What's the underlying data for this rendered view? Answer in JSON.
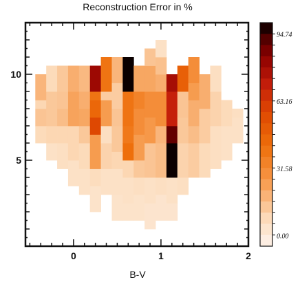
{
  "chart_data": {
    "type": "heatmap",
    "title": "Reconstruction Error in %",
    "xlabel": "B-V",
    "ylabel": "",
    "xlim": [
      -0.55,
      2.0
    ],
    "ylim": [
      0,
      13
    ],
    "xticks": [
      0,
      1,
      2
    ],
    "xtick_labels": [
      "0",
      "1",
      "2"
    ],
    "yticks": [
      5,
      10
    ],
    "ytick_labels": [
      "5",
      "10"
    ],
    "colorbar": {
      "range": [
        -5,
        100
      ],
      "tick_values": [
        0.0,
        31.58,
        63.16,
        94.74
      ],
      "tick_labels": [
        "0.00",
        "31.58",
        "63.16",
        "94.74"
      ],
      "low_color": "#fdf3ec",
      "high_color": "#000000"
    },
    "cell_width": 0.125,
    "cell_height": 0.5,
    "columns": [
      {
        "x": -0.375,
        "segments": [
          {
            "y0": 6.0,
            "y1": 7.0,
            "value": 8
          },
          {
            "y0": 7.0,
            "y1": 8.0,
            "value": 14
          },
          {
            "y0": 8.0,
            "y1": 8.5,
            "value": 9
          },
          {
            "y0": 8.5,
            "y1": 10.0,
            "value": 18
          }
        ]
      },
      {
        "x": -0.25,
        "segments": [
          {
            "y0": 5.0,
            "y1": 6.0,
            "value": 5
          },
          {
            "y0": 6.0,
            "y1": 7.0,
            "value": 9
          },
          {
            "y0": 7.0,
            "y1": 9.0,
            "value": 13
          },
          {
            "y0": 9.0,
            "y1": 10.5,
            "value": 8
          }
        ]
      },
      {
        "x": -0.125,
        "segments": [
          {
            "y0": 4.5,
            "y1": 6.0,
            "value": 6
          },
          {
            "y0": 6.0,
            "y1": 7.0,
            "value": 9
          },
          {
            "y0": 7.0,
            "y1": 8.0,
            "value": 16
          },
          {
            "y0": 8.0,
            "y1": 9.0,
            "value": 14
          },
          {
            "y0": 9.0,
            "y1": 10.5,
            "value": 13
          }
        ]
      },
      {
        "x": 0.0,
        "segments": [
          {
            "y0": 3.5,
            "y1": 5.0,
            "value": 5
          },
          {
            "y0": 5.0,
            "y1": 7.0,
            "value": 9
          },
          {
            "y0": 7.0,
            "y1": 9.0,
            "value": 23
          },
          {
            "y0": 9.0,
            "y1": 10.5,
            "value": 20
          }
        ]
      },
      {
        "x": 0.125,
        "segments": [
          {
            "y0": 3.0,
            "y1": 4.5,
            "value": 5
          },
          {
            "y0": 4.5,
            "y1": 6.0,
            "value": 8
          },
          {
            "y0": 6.0,
            "y1": 7.0,
            "value": 13
          },
          {
            "y0": 7.0,
            "y1": 8.0,
            "value": 22
          },
          {
            "y0": 8.0,
            "y1": 9.0,
            "value": 20
          },
          {
            "y0": 9.0,
            "y1": 10.5,
            "value": 17
          }
        ]
      },
      {
        "x": 0.25,
        "segments": [
          {
            "y0": 3.5,
            "y1": 4.5,
            "value": 7
          },
          {
            "y0": 4.5,
            "y1": 6.5,
            "value": 25
          },
          {
            "y0": 6.5,
            "y1": 7.5,
            "value": 58
          },
          {
            "y0": 7.5,
            "y1": 8.5,
            "value": 45
          },
          {
            "y0": 8.5,
            "y1": 9.0,
            "value": 40
          },
          {
            "y0": 9.0,
            "y1": 10.5,
            "value": 80
          }
        ]
      },
      {
        "x": 0.375,
        "segments": [
          {
            "y0": 3.0,
            "y1": 4.5,
            "value": 5
          },
          {
            "y0": 4.5,
            "y1": 6.0,
            "value": 10
          },
          {
            "y0": 6.0,
            "y1": 7.0,
            "value": 6
          },
          {
            "y0": 7.0,
            "y1": 8.5,
            "value": 25
          },
          {
            "y0": 8.5,
            "y1": 9.0,
            "value": 12
          },
          {
            "y0": 9.0,
            "y1": 11.0,
            "value": 40
          }
        ]
      },
      {
        "x": 0.5,
        "segments": [
          {
            "y0": 3.0,
            "y1": 4.5,
            "value": 5
          },
          {
            "y0": 4.5,
            "y1": 5.5,
            "value": 9
          },
          {
            "y0": 5.5,
            "y1": 7.0,
            "value": 13
          },
          {
            "y0": 7.0,
            "y1": 8.0,
            "value": 14
          },
          {
            "y0": 8.0,
            "y1": 9.5,
            "value": 12
          },
          {
            "y0": 9.5,
            "y1": 11.0,
            "value": 18
          }
        ]
      },
      {
        "x": 0.625,
        "segments": [
          {
            "y0": 2.5,
            "y1": 4.0,
            "value": 5
          },
          {
            "y0": 4.0,
            "y1": 5.0,
            "value": 9
          },
          {
            "y0": 5.0,
            "y1": 6.0,
            "value": 42
          },
          {
            "y0": 6.0,
            "y1": 7.0,
            "value": 38
          },
          {
            "y0": 7.0,
            "y1": 9.0,
            "value": 40
          },
          {
            "y0": 9.0,
            "y1": 11.0,
            "value": 99
          }
        ]
      },
      {
        "x": 0.75,
        "segments": [
          {
            "y0": 3.0,
            "y1": 4.0,
            "value": 6
          },
          {
            "y0": 4.0,
            "y1": 5.0,
            "value": 13
          },
          {
            "y0": 5.0,
            "y1": 6.5,
            "value": 25
          },
          {
            "y0": 6.5,
            "y1": 8.0,
            "value": 30
          },
          {
            "y0": 8.0,
            "y1": 9.0,
            "value": 34
          },
          {
            "y0": 9.0,
            "y1": 10.5,
            "value": 22
          }
        ]
      },
      {
        "x": 0.875,
        "segments": [
          {
            "y0": 2.5,
            "y1": 4.0,
            "value": 5
          },
          {
            "y0": 4.0,
            "y1": 6.0,
            "value": 14
          },
          {
            "y0": 6.0,
            "y1": 7.5,
            "value": 26
          },
          {
            "y0": 7.5,
            "y1": 9.0,
            "value": 30
          },
          {
            "y0": 9.0,
            "y1": 10.5,
            "value": 22
          },
          {
            "y0": 10.5,
            "y1": 11.5,
            "value": 14
          }
        ]
      },
      {
        "x": 1.0,
        "segments": [
          {
            "y0": 3.0,
            "y1": 4.0,
            "value": 6
          },
          {
            "y0": 4.0,
            "y1": 6.0,
            "value": 16
          },
          {
            "y0": 6.0,
            "y1": 7.0,
            "value": 18
          },
          {
            "y0": 7.0,
            "y1": 9.0,
            "value": 30
          },
          {
            "y0": 9.0,
            "y1": 10.0,
            "value": 20
          },
          {
            "y0": 10.0,
            "y1": 11.0,
            "value": 15
          },
          {
            "y0": 11.0,
            "y1": 12.0,
            "value": 5
          }
        ]
      },
      {
        "x": 1.125,
        "segments": [
          {
            "y0": 2.5,
            "y1": 4.0,
            "value": 5
          },
          {
            "y0": 4.0,
            "y1": 6.0,
            "value": 99
          },
          {
            "y0": 6.0,
            "y1": 7.0,
            "value": 90
          },
          {
            "y0": 7.0,
            "y1": 9.0,
            "value": 70
          },
          {
            "y0": 9.0,
            "y1": 10.0,
            "value": 78
          }
        ]
      },
      {
        "x": 1.25,
        "segments": [
          {
            "y0": 3.0,
            "y1": 4.0,
            "value": 6
          },
          {
            "y0": 4.0,
            "y1": 6.0,
            "value": 10
          },
          {
            "y0": 6.0,
            "y1": 7.5,
            "value": 13
          },
          {
            "y0": 7.5,
            "y1": 9.0,
            "value": 14
          },
          {
            "y0": 9.0,
            "y1": 10.5,
            "value": 48
          }
        ]
      },
      {
        "x": 1.375,
        "segments": [
          {
            "y0": 4.0,
            "y1": 6.0,
            "value": 12
          },
          {
            "y0": 6.0,
            "y1": 7.0,
            "value": 16
          },
          {
            "y0": 7.0,
            "y1": 8.5,
            "value": 20
          },
          {
            "y0": 8.5,
            "y1": 9.5,
            "value": 25
          },
          {
            "y0": 9.5,
            "y1": 11.0,
            "value": 30
          }
        ]
      },
      {
        "x": 1.5,
        "segments": [
          {
            "y0": 4.0,
            "y1": 6.0,
            "value": 8
          },
          {
            "y0": 6.0,
            "y1": 8.0,
            "value": 12
          },
          {
            "y0": 8.0,
            "y1": 10.0,
            "value": 20
          }
        ]
      },
      {
        "x": 1.625,
        "segments": [
          {
            "y0": 4.5,
            "y1": 7.0,
            "value": 6
          },
          {
            "y0": 7.0,
            "y1": 9.0,
            "value": 10
          },
          {
            "y0": 9.0,
            "y1": 10.5,
            "value": 6
          }
        ]
      },
      {
        "x": 1.75,
        "segments": [
          {
            "y0": 5.0,
            "y1": 7.0,
            "value": 5
          },
          {
            "y0": 7.0,
            "y1": 8.5,
            "value": 8
          }
        ]
      },
      {
        "x": 1.875,
        "segments": [
          {
            "y0": 6.0,
            "y1": 7.5,
            "value": 5
          },
          {
            "y0": 7.5,
            "y1": 8.0,
            "value": 6
          }
        ]
      }
    ],
    "extra_cells": [
      {
        "x": 0.25,
        "y0": 2.0,
        "y1": 3.5,
        "value": 4
      },
      {
        "x": 0.5,
        "y0": 1.5,
        "y1": 3.0,
        "value": 4
      },
      {
        "x": 0.625,
        "y0": 1.5,
        "y1": 2.5,
        "value": 4
      },
      {
        "x": 0.75,
        "y0": 1.5,
        "y1": 3.0,
        "value": 4
      },
      {
        "x": 0.875,
        "y0": 1.0,
        "y1": 2.5,
        "value": 3
      },
      {
        "x": 1.0,
        "y0": 1.5,
        "y1": 3.0,
        "value": 3
      },
      {
        "x": 1.125,
        "y0": 1.5,
        "y1": 2.5,
        "value": 3
      }
    ]
  }
}
